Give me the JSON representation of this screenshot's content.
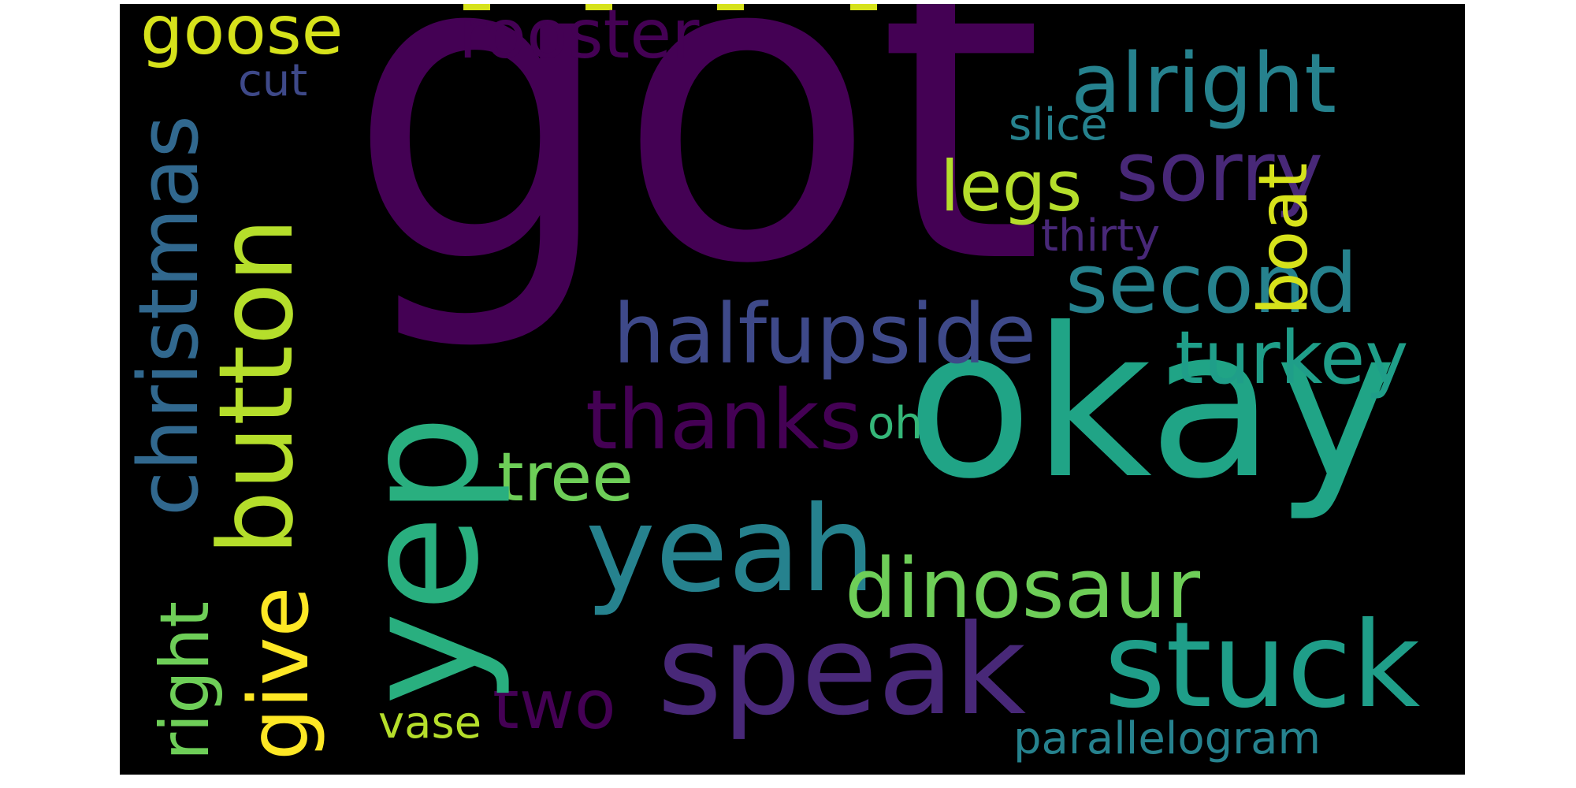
{
  "words": {
    "got": "got",
    "okay": "okay",
    "yep": "yep",
    "button": "button",
    "speak": "speak",
    "yeah": "yeah",
    "stuck": "stuck",
    "upside": "upside",
    "half": "half",
    "thanks": "thanks",
    "dinosaur": "dinosaur",
    "alright": "alright",
    "second": "second",
    "turkey": "turkey",
    "sorry": "sorry",
    "legs": "legs",
    "goose": "goose",
    "rooster": "rooster",
    "christmas": "christmas",
    "boat": "boat",
    "give": "give",
    "right": "right",
    "tree": "tree",
    "two": "two",
    "parallelogram": "parallelogram",
    "vase": "vase",
    "slice": "slice",
    "thirty": "thirty",
    "cut": "cut",
    "oh": "oh"
  },
  "colors": {
    "background": "#000000",
    "dark_purple": "#440154",
    "purple": "#482878",
    "indigo": "#3e4989",
    "blue": "#31688e",
    "teal": "#26828e",
    "teal_green": "#1f9e89",
    "green": "#35b779",
    "light_green": "#6ece58",
    "lime": "#b5de2b",
    "yellow": "#fde725"
  }
}
